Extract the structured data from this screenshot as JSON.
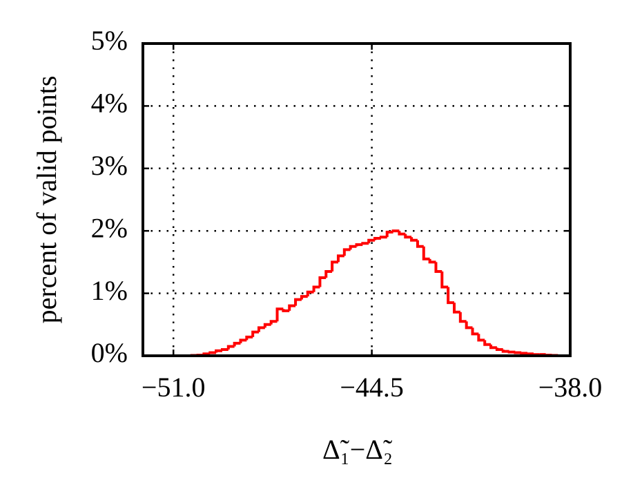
{
  "chart_data": {
    "type": "histogram",
    "x_label": "Δ̃₁−Δ̃₂",
    "y_label": "percent of valid points",
    "bins": [
      -52,
      -51.8,
      -51.6,
      -51.4,
      -51.2,
      -51,
      -50.8,
      -50.6,
      -50.4,
      -50.2,
      -50,
      -49.8,
      -49.6,
      -49.4,
      -49.2,
      -49,
      -48.8,
      -48.6,
      -48.4,
      -48.2,
      -48,
      -47.8,
      -47.6,
      -47.4,
      -47.2,
      -47,
      -46.8,
      -46.6,
      -46.4,
      -46.2,
      -46,
      -45.8,
      -45.6,
      -45.4,
      -45.2,
      -45,
      -44.8,
      -44.6,
      -44.4,
      -44.2,
      -44,
      -43.8,
      -43.6,
      -43.4,
      -43.2,
      -43,
      -42.8,
      -42.6,
      -42.4,
      -42.2,
      -42,
      -41.8,
      -41.6,
      -41.4,
      -41.2,
      -41,
      -40.8,
      -40.6,
      -40.4,
      -40.2,
      -40,
      -39.8,
      -39.6,
      -39.4,
      -39.2,
      -39,
      -38.8,
      -38.6,
      -38.4,
      -38.2,
      -38
    ],
    "values": [
      0,
      0,
      0,
      0,
      0,
      0,
      0,
      0,
      0.005,
      0.01,
      0.03,
      0.05,
      0.08,
      0.1,
      0.15,
      0.2,
      0.25,
      0.3,
      0.38,
      0.45,
      0.5,
      0.55,
      0.75,
      0.72,
      0.8,
      0.9,
      0.95,
      1.02,
      1.1,
      1.25,
      1.35,
      1.5,
      1.6,
      1.7,
      1.75,
      1.78,
      1.8,
      1.85,
      1.88,
      1.9,
      1.98,
      2.0,
      1.95,
      1.9,
      1.85,
      1.75,
      1.55,
      1.5,
      1.35,
      1.1,
      0.85,
      0.7,
      0.55,
      0.45,
      0.35,
      0.25,
      0.18,
      0.13,
      0.1,
      0.07,
      0.06,
      0.05,
      0.04,
      0.03,
      0.02,
      0.02,
      0.01,
      0.005,
      0,
      0
    ],
    "color": "#ff0000",
    "xlim": [
      -52,
      -38
    ],
    "ylim": [
      0,
      5
    ],
    "xticks": [
      {
        "value": -51,
        "label": "−51.0"
      },
      {
        "value": -44.5,
        "label": "−44.5"
      },
      {
        "value": -38,
        "label": "−38.0"
      }
    ],
    "yticks": [
      {
        "value": 0,
        "label": "0%"
      },
      {
        "value": 1,
        "label": "1%"
      },
      {
        "value": 2,
        "label": "2%"
      },
      {
        "value": 3,
        "label": "3%"
      },
      {
        "value": 4,
        "label": "4%"
      },
      {
        "value": 5,
        "label": "5%"
      }
    ],
    "grid": true
  }
}
